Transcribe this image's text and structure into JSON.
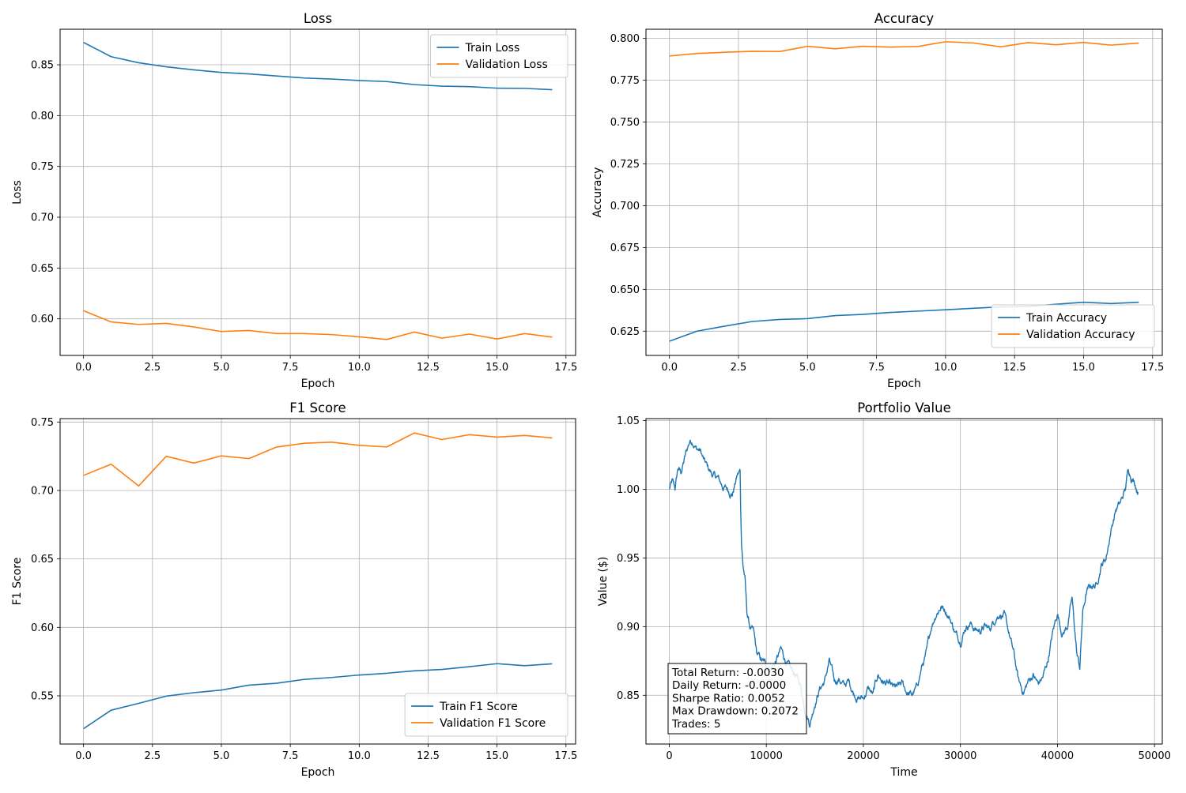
{
  "colors": {
    "train": "#1f77b4",
    "validation": "#ff7f0e",
    "portfolio": "#1f77b4",
    "grid": "#b0b0b0"
  },
  "chart_data": [
    {
      "id": "loss",
      "type": "line",
      "title": "Loss",
      "xlabel": "Epoch",
      "ylabel": "Loss",
      "xlim": [
        -0.85,
        17.85
      ],
      "ylim": [
        0.564,
        0.885
      ],
      "xticks": [
        0,
        2.5,
        5,
        7.5,
        10,
        12.5,
        15,
        17.5
      ],
      "xtick_labels": [
        "0.0",
        "2.5",
        "5.0",
        "7.5",
        "10.0",
        "12.5",
        "15.0",
        "17.5"
      ],
      "yticks": [
        0.6,
        0.65,
        0.7,
        0.75,
        0.8,
        0.85
      ],
      "ytick_labels": [
        "0.60",
        "0.65",
        "0.70",
        "0.75",
        "0.80",
        "0.85"
      ],
      "grid": true,
      "legend_position": "top-right",
      "x": [
        0,
        1,
        2,
        3,
        4,
        5,
        6,
        7,
        8,
        9,
        10,
        11,
        12,
        13,
        14,
        15,
        16,
        17
      ],
      "series": [
        {
          "name": "Train Loss",
          "color": "#1f77b4",
          "values": [
            0.872,
            0.858,
            0.852,
            0.848,
            0.845,
            0.8425,
            0.841,
            0.839,
            0.837,
            0.836,
            0.8345,
            0.8335,
            0.8305,
            0.829,
            0.8285,
            0.827,
            0.8268,
            0.8255
          ]
        },
        {
          "name": "Validation Loss",
          "color": "#ff7f0e",
          "values": [
            0.608,
            0.597,
            0.5945,
            0.5955,
            0.592,
            0.5875,
            0.5885,
            0.5855,
            0.5855,
            0.5845,
            0.5823,
            0.5797,
            0.587,
            0.581,
            0.585,
            0.5802,
            0.5855,
            0.582
          ]
        }
      ]
    },
    {
      "id": "accuracy",
      "type": "line",
      "title": "Accuracy",
      "xlabel": "Epoch",
      "ylabel": "Accuracy",
      "xlim": [
        -0.85,
        17.85
      ],
      "ylim": [
        0.6105,
        0.8055
      ],
      "xticks": [
        0,
        2.5,
        5,
        7.5,
        10,
        12.5,
        15,
        17.5
      ],
      "xtick_labels": [
        "0.0",
        "2.5",
        "5.0",
        "7.5",
        "10.0",
        "12.5",
        "15.0",
        "17.5"
      ],
      "yticks": [
        0.625,
        0.65,
        0.675,
        0.7,
        0.725,
        0.75,
        0.775,
        0.8
      ],
      "ytick_labels": [
        "0.625",
        "0.650",
        "0.675",
        "0.700",
        "0.725",
        "0.750",
        "0.775",
        "0.800"
      ],
      "grid": true,
      "legend_position": "bottom-right",
      "x": [
        0,
        1,
        2,
        3,
        4,
        5,
        6,
        7,
        8,
        9,
        10,
        11,
        12,
        13,
        14,
        15,
        16,
        17
      ],
      "series": [
        {
          "name": "Train Accuracy",
          "color": "#1f77b4",
          "values": [
            0.619,
            0.625,
            0.628,
            0.6308,
            0.632,
            0.6325,
            0.6343,
            0.635,
            0.6362,
            0.637,
            0.6378,
            0.6387,
            0.6395,
            0.6398,
            0.6411,
            0.6423,
            0.6415,
            0.6423
          ]
        },
        {
          "name": "Validation Accuracy",
          "color": "#ff7f0e",
          "values": [
            0.7895,
            0.791,
            0.7917,
            0.7923,
            0.7922,
            0.7953,
            0.7938,
            0.7953,
            0.7948,
            0.7952,
            0.798,
            0.7973,
            0.795,
            0.7975,
            0.7962,
            0.7976,
            0.796,
            0.7972
          ]
        }
      ]
    },
    {
      "id": "f1",
      "type": "line",
      "title": "F1 Score",
      "xlabel": "Epoch",
      "ylabel": "F1 Score",
      "xlim": [
        -0.85,
        17.85
      ],
      "ylim": [
        0.5148,
        0.7525
      ],
      "xticks": [
        0,
        2.5,
        5,
        7.5,
        10,
        12.5,
        15,
        17.5
      ],
      "xtick_labels": [
        "0.0",
        "2.5",
        "5.0",
        "7.5",
        "10.0",
        "12.5",
        "15.0",
        "17.5"
      ],
      "yticks": [
        0.55,
        0.6,
        0.65,
        0.7,
        0.75
      ],
      "ytick_labels": [
        "0.55",
        "0.60",
        "0.65",
        "0.70",
        "0.75"
      ],
      "grid": true,
      "legend_position": "bottom-right",
      "x": [
        0,
        1,
        2,
        3,
        4,
        5,
        6,
        7,
        8,
        9,
        10,
        11,
        12,
        13,
        14,
        15,
        16,
        17
      ],
      "series": [
        {
          "name": "Train F1 Score",
          "color": "#1f77b4",
          "values": [
            0.526,
            0.5395,
            0.5445,
            0.5498,
            0.5523,
            0.5542,
            0.5578,
            0.5592,
            0.562,
            0.5634,
            0.5652,
            0.5665,
            0.5683,
            0.5693,
            0.5713,
            0.5735,
            0.572,
            0.5734
          ]
        },
        {
          "name": "Validation F1 Score",
          "color": "#ff7f0e",
          "values": [
            0.711,
            0.7192,
            0.7033,
            0.725,
            0.72,
            0.7253,
            0.7233,
            0.7317,
            0.7345,
            0.7353,
            0.733,
            0.7318,
            0.742,
            0.7372,
            0.7408,
            0.739,
            0.7402,
            0.7384
          ]
        }
      ]
    },
    {
      "id": "portfolio",
      "type": "line",
      "title": "Portfolio Value",
      "xlabel": "Time",
      "ylabel": "Value ($)",
      "xlim": [
        -2400,
        50800
      ],
      "ylim": [
        0.8145,
        1.0515
      ],
      "xticks": [
        0,
        10000,
        20000,
        30000,
        40000,
        50000
      ],
      "xtick_labels": [
        "0",
        "10000",
        "20000",
        "30000",
        "40000",
        "50000"
      ],
      "yticks": [
        0.85,
        0.9,
        0.95,
        1.0,
        1.05
      ],
      "ytick_labels": [
        "0.85",
        "0.90",
        "0.95",
        "1.00",
        "1.05"
      ],
      "grid": true,
      "noise": 0.0035,
      "series": [
        {
          "color": "#1f77b4",
          "points": [
            [
              0,
              1.0
            ],
            [
              300,
              1.005
            ],
            [
              600,
              1.0
            ],
            [
              900,
              1.015
            ],
            [
              1200,
              1.012
            ],
            [
              1500,
              1.02
            ],
            [
              1800,
              1.028
            ],
            [
              2100,
              1.035
            ],
            [
              2400,
              1.036
            ],
            [
              2800,
              1.03
            ],
            [
              3200,
              1.028
            ],
            [
              3600,
              1.02
            ],
            [
              4000,
              1.015
            ],
            [
              4500,
              1.01
            ],
            [
              5000,
              1.008
            ],
            [
              5500,
              1.002
            ],
            [
              6000,
              1.0
            ],
            [
              6500,
              0.997
            ],
            [
              7000,
              1.01
            ],
            [
              7300,
              1.013
            ],
            [
              7350,
              0.99
            ],
            [
              7450,
              0.96
            ],
            [
              7600,
              0.945
            ],
            [
              7800,
              0.935
            ],
            [
              8000,
              0.91
            ],
            [
              8300,
              0.9
            ],
            [
              8700,
              0.895
            ],
            [
              9000,
              0.88
            ],
            [
              9500,
              0.875
            ],
            [
              10000,
              0.872
            ],
            [
              10500,
              0.87
            ],
            [
              11000,
              0.875
            ],
            [
              11500,
              0.883
            ],
            [
              12000,
              0.875
            ],
            [
              12500,
              0.868
            ],
            [
              13000,
              0.865
            ],
            [
              13500,
              0.858
            ],
            [
              14000,
              0.84
            ],
            [
              14500,
              0.83
            ],
            [
              15000,
              0.845
            ],
            [
              15500,
              0.855
            ],
            [
              16000,
              0.86
            ],
            [
              16500,
              0.875
            ],
            [
              17000,
              0.86
            ],
            [
              17500,
              0.862
            ],
            [
              18000,
              0.857
            ],
            [
              18500,
              0.86
            ],
            [
              19000,
              0.852
            ],
            [
              19500,
              0.848
            ],
            [
              20000,
              0.848
            ],
            [
              20500,
              0.855
            ],
            [
              21000,
              0.85
            ],
            [
              21500,
              0.865
            ],
            [
              22000,
              0.86
            ],
            [
              22500,
              0.858
            ],
            [
              23000,
              0.855
            ],
            [
              23500,
              0.855
            ],
            [
              24000,
              0.858
            ],
            [
              24500,
              0.852
            ],
            [
              25000,
              0.85
            ],
            [
              25500,
              0.855
            ],
            [
              26000,
              0.87
            ],
            [
              26500,
              0.88
            ],
            [
              27000,
              0.9
            ],
            [
              27500,
              0.91
            ],
            [
              28000,
              0.915
            ],
            [
              28500,
              0.912
            ],
            [
              29000,
              0.905
            ],
            [
              29500,
              0.895
            ],
            [
              30000,
              0.89
            ],
            [
              30500,
              0.9
            ],
            [
              31000,
              0.903
            ],
            [
              31500,
              0.898
            ],
            [
              32000,
              0.897
            ],
            [
              32500,
              0.9
            ],
            [
              33000,
              0.898
            ],
            [
              33500,
              0.905
            ],
            [
              34000,
              0.91
            ],
            [
              34500,
              0.908
            ],
            [
              35000,
              0.895
            ],
            [
              35500,
              0.88
            ],
            [
              36000,
              0.86
            ],
            [
              36500,
              0.852
            ],
            [
              37000,
              0.86
            ],
            [
              37500,
              0.865
            ],
            [
              38000,
              0.858
            ],
            [
              38500,
              0.863
            ],
            [
              39000,
              0.875
            ],
            [
              39500,
              0.895
            ],
            [
              40000,
              0.91
            ],
            [
              40500,
              0.895
            ],
            [
              41000,
              0.9
            ],
            [
              41500,
              0.92
            ],
            [
              42000,
              0.88
            ],
            [
              42300,
              0.87
            ],
            [
              42600,
              0.91
            ],
            [
              43000,
              0.925
            ],
            [
              43500,
              0.93
            ],
            [
              44000,
              0.93
            ],
            [
              44500,
              0.945
            ],
            [
              45000,
              0.95
            ],
            [
              45500,
              0.97
            ],
            [
              46000,
              0.985
            ],
            [
              46500,
              0.99
            ],
            [
              47000,
              1.0
            ],
            [
              47300,
              1.015
            ],
            [
              47600,
              1.01
            ],
            [
              48000,
              1.005
            ],
            [
              48300,
              0.998
            ]
          ]
        }
      ],
      "stats": [
        "Total Return: -0.0030",
        "Daily Return: -0.0000",
        "Sharpe Ratio: 0.0052",
        "Max Drawdown: 0.2072",
        "Trades: 5"
      ]
    }
  ]
}
